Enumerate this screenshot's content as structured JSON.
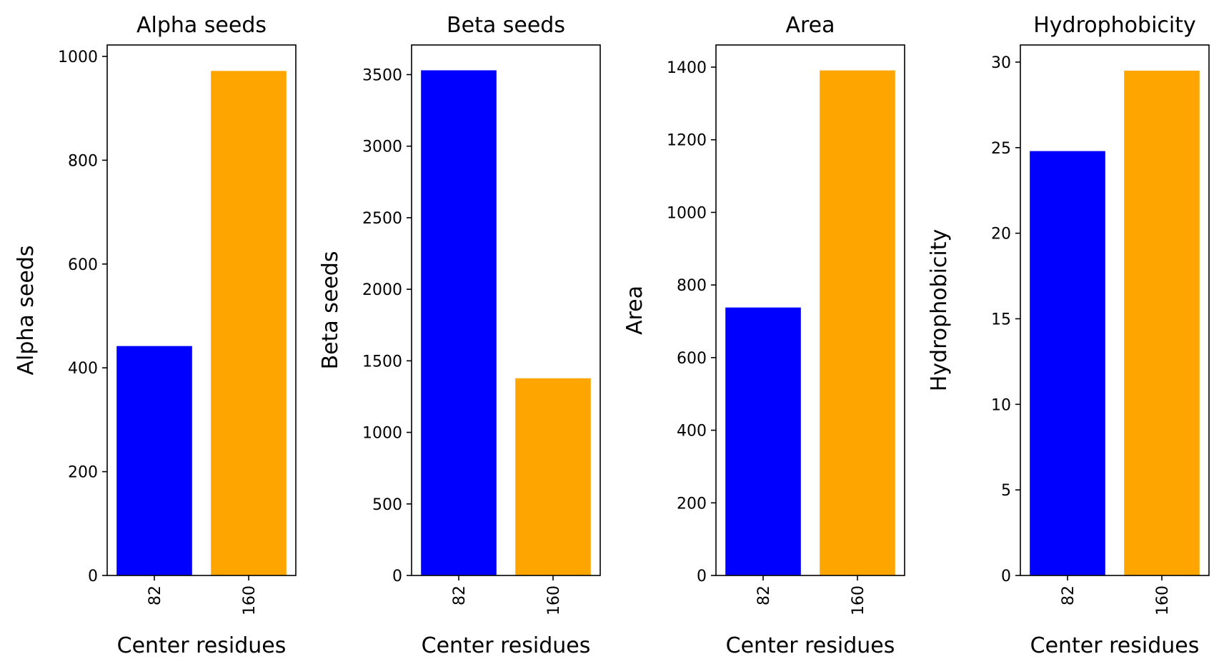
{
  "chart_data": [
    {
      "type": "bar",
      "title": "Alpha seeds",
      "xlabel": "Center residues",
      "ylabel": "Alpha seeds",
      "categories": [
        "82",
        "160"
      ],
      "values": [
        442,
        972
      ],
      "colors": [
        "#0000ff",
        "#ffa500"
      ],
      "ylim": [
        0,
        1022
      ],
      "yticks": [
        0,
        200,
        400,
        600,
        800,
        1000
      ],
      "xtick_rotation": 90
    },
    {
      "type": "bar",
      "title": "Beta seeds",
      "xlabel": "Center residues",
      "ylabel": "Beta seeds",
      "categories": [
        "82",
        "160"
      ],
      "values": [
        3530,
        1378
      ],
      "colors": [
        "#0000ff",
        "#ffa500"
      ],
      "ylim": [
        0,
        3707
      ],
      "yticks": [
        0,
        500,
        1000,
        1500,
        2000,
        2500,
        3000,
        3500
      ],
      "xtick_rotation": 90
    },
    {
      "type": "bar",
      "title": "Area",
      "xlabel": "Center residues",
      "ylabel": "Area",
      "categories": [
        "82",
        "160"
      ],
      "values": [
        738,
        1391
      ],
      "colors": [
        "#0000ff",
        "#ffa500"
      ],
      "ylim": [
        0,
        1461
      ],
      "yticks": [
        0,
        200,
        400,
        600,
        800,
        1000,
        1200,
        1400
      ],
      "xtick_rotation": 90
    },
    {
      "type": "bar",
      "title": "Hydrophobicity",
      "xlabel": "Center residues",
      "ylabel": "Hydrophobicity",
      "categories": [
        "82",
        "160"
      ],
      "values": [
        24.8,
        29.5
      ],
      "colors": [
        "#0000ff",
        "#ffa500"
      ],
      "ylim": [
        0,
        31.0
      ],
      "yticks": [
        0,
        5,
        10,
        15,
        20,
        25,
        30
      ],
      "xtick_rotation": 90
    }
  ]
}
